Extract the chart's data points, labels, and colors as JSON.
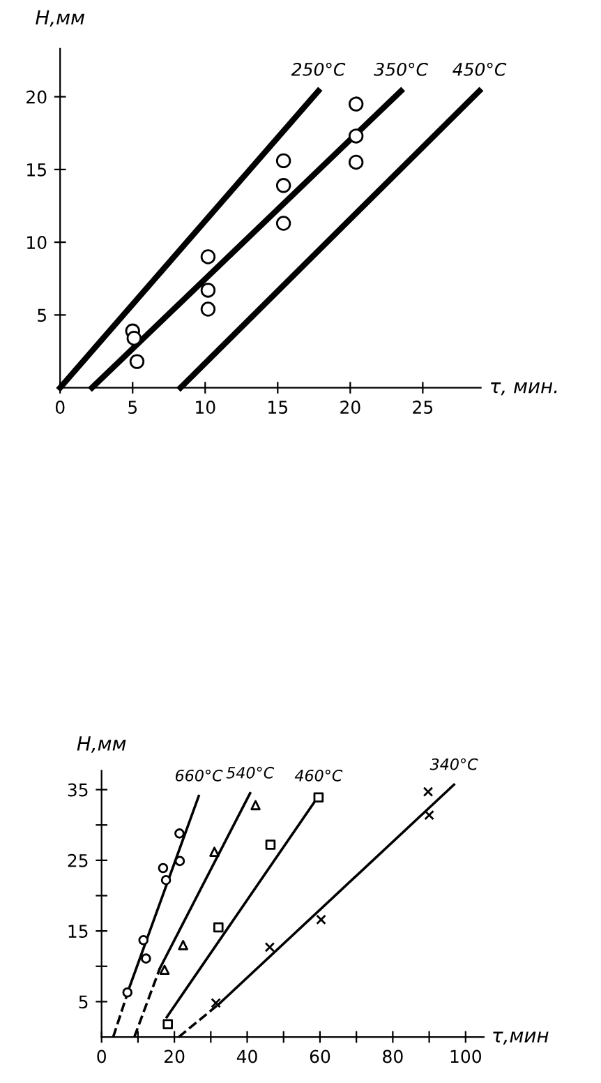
{
  "chart_data": [
    {
      "type": "line",
      "xlabel": "τ, мин.",
      "ylabel": "H,мм",
      "xlim": [
        0,
        29
      ],
      "ylim": [
        0,
        23.3
      ],
      "xticks": [
        0,
        5,
        10,
        15,
        20,
        25
      ],
      "yticks": [
        5,
        10,
        15,
        20
      ],
      "grid": false,
      "legend": false,
      "series": [
        {
          "name": "250°C",
          "color": "#000000",
          "line_style": "solid",
          "x": [
            0,
            17.8
          ],
          "values": [
            0,
            20.4
          ]
        },
        {
          "name": "350°C",
          "color": "#000000",
          "line_style": "solid",
          "x": [
            2.2,
            23.5
          ],
          "values": [
            0,
            20.4
          ]
        },
        {
          "name": "450°C",
          "color": "#000000",
          "line_style": "solid",
          "x": [
            8.3,
            28.9
          ],
          "values": [
            0,
            20.4
          ]
        },
        {
          "type": "scatter",
          "color": "#000000",
          "marker": "circle",
          "x": [
            5.0,
            5.1,
            5.3,
            10.2,
            10.2,
            10.2,
            15.4,
            15.4,
            15.4,
            20.4,
            20.4,
            20.4
          ],
          "values": [
            3.9,
            3.4,
            1.8,
            9.0,
            6.7,
            5.4,
            15.6,
            13.9,
            11.3,
            19.5,
            17.3,
            15.5
          ]
        }
      ]
    },
    {
      "type": "line",
      "xlabel": "τ,мин",
      "ylabel": "H,мм",
      "xlim": [
        0,
        105
      ],
      "ylim": [
        0,
        37.7
      ],
      "xticks": [
        0,
        {
          "value": 10,
          "label": null
        },
        20,
        {
          "value": 30,
          "label": null
        },
        40,
        {
          "value": 50,
          "label": null
        },
        60,
        {
          "value": 70,
          "label": null
        },
        80,
        {
          "value": 90,
          "label": null
        },
        100
      ],
      "yticks": [
        5,
        {
          "value": 10,
          "label": null
        },
        15,
        {
          "value": 20,
          "label": null
        },
        25,
        {
          "value": 30,
          "label": null
        },
        35
      ],
      "grid": false,
      "legend": false,
      "series": [
        {
          "name": "660°C",
          "color": "#000000",
          "line_style": "solid",
          "x": [
            7.7,
            26.7
          ],
          "values": [
            7.1,
            34.1
          ]
        },
        {
          "color": "#000000",
          "line_style": "dashed",
          "x": [
            3.2,
            7.7
          ],
          "values": [
            0,
            7.1
          ]
        },
        {
          "name": "540°C",
          "color": "#000000",
          "line_style": "solid",
          "x": [
            16.0,
            40.8
          ],
          "values": [
            9.7,
            34.5
          ]
        },
        {
          "color": "#000000",
          "line_style": "dashed",
          "x": [
            9.0,
            16.0
          ],
          "values": [
            0,
            9.7
          ]
        },
        {
          "name": "460°C",
          "color": "#000000",
          "line_style": "solid",
          "x": [
            17.9,
            59.6
          ],
          "values": [
            2.8,
            34.1
          ]
        },
        {
          "name": "340°C",
          "color": "#000000",
          "line_style": "solid",
          "x": [
            32.1,
            96.8
          ],
          "values": [
            4.6,
            35.7
          ]
        },
        {
          "color": "#000000",
          "line_style": "dashed",
          "x": [
            21.2,
            32.1
          ],
          "values": [
            0,
            4.6
          ]
        },
        {
          "type": "scatter",
          "color": "#000000",
          "marker": "circle",
          "x": [
            7.1,
            11.5,
            12.2,
            17.7,
            16.9,
            21.5,
            21.4
          ],
          "values": [
            6.3,
            13.7,
            11.1,
            22.2,
            23.9,
            24.9,
            28.8
          ]
        },
        {
          "type": "scatter",
          "color": "#000000",
          "marker": "triangle",
          "x": [
            17.3,
            22.4,
            31.0,
            42.3
          ],
          "values": [
            9.5,
            13.0,
            26.2,
            32.8
          ]
        },
        {
          "type": "scatter",
          "color": "#000000",
          "marker": "square",
          "x": [
            18.2,
            32.1,
            46.4,
            59.6
          ],
          "values": [
            1.8,
            15.5,
            27.2,
            33.9
          ]
        },
        {
          "type": "scatter",
          "color": "#000000",
          "marker": "cross",
          "x": [
            31.4,
            46.2,
            60.3,
            89.7,
            90.0
          ],
          "values": [
            4.8,
            12.7,
            16.6,
            34.7,
            31.4
          ]
        }
      ]
    }
  ]
}
